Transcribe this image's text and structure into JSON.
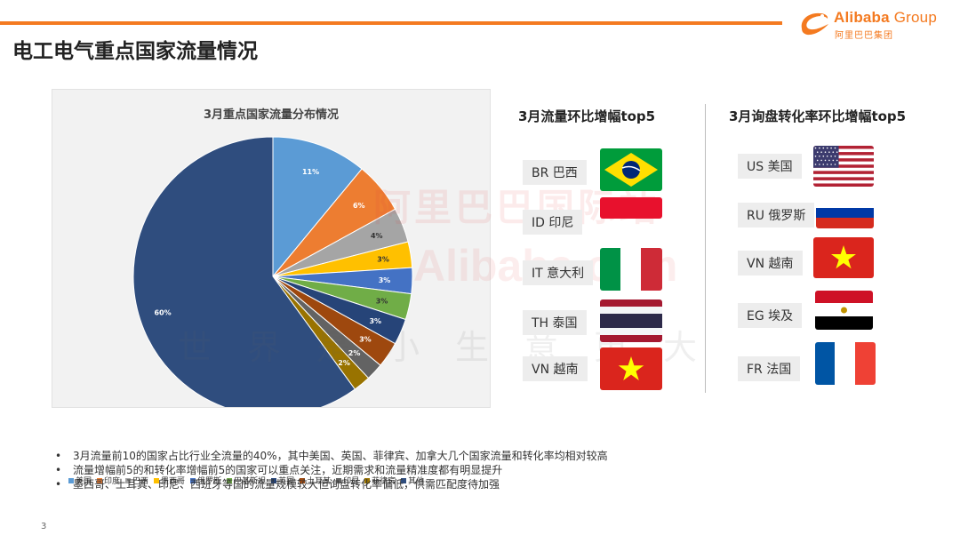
{
  "header": {
    "title": "电工电气重点国家流量情况",
    "brand_en": "Alibaba",
    "brand_group": " Group",
    "brand_cn": "阿里巴巴集团",
    "accent": "#f47a20"
  },
  "watermark": {
    "line1": "阿里巴巴国际站",
    "line2": "Alibaba.com",
    "line3": "世界是小生意更大"
  },
  "chart_data": {
    "type": "pie",
    "title": "3月重点国家流量分布情况",
    "categories": [
      "美国",
      "印度",
      "巴西",
      "墨西哥",
      "俄罗斯",
      "巴基斯坦",
      "英国",
      "土耳其",
      "印尼",
      "菲律宾",
      "其他"
    ],
    "values": [
      11,
      6,
      4,
      3,
      3,
      3,
      3,
      3,
      2,
      2,
      60
    ],
    "labels": [
      "11%",
      "6%",
      "4%",
      "3%",
      "3%",
      "3%",
      "3%",
      "3%",
      "2%",
      "2%",
      "60%"
    ],
    "colors": [
      "#5b9bd5",
      "#ed7d31",
      "#a5a5a5",
      "#ffc000",
      "#4472c4",
      "#70ad47",
      "#264478",
      "#9e480e",
      "#636363",
      "#997300",
      "#2f4d7e"
    ],
    "legend": "bottom"
  },
  "traffic_top5": {
    "title": "3月流量环比增幅top5",
    "items": [
      {
        "label": "BR 巴西",
        "flag": "brazil-flag-icon"
      },
      {
        "label": "ID 印尼",
        "flag": "indonesia-flag-icon"
      },
      {
        "label": "IT 意大利",
        "flag": "italy-flag-icon"
      },
      {
        "label": "TH 泰国",
        "flag": "thailand-flag-icon"
      },
      {
        "label": "VN 越南",
        "flag": "vietnam-flag-icon"
      }
    ]
  },
  "conversion_top5": {
    "title": "3月询盘转化率环比增幅top5",
    "items": [
      {
        "label": "US 美国",
        "flag": "usa-flag-icon"
      },
      {
        "label": "RU 俄罗斯",
        "flag": "russia-flag-icon"
      },
      {
        "label": "VN 越南",
        "flag": "vietnam-flag-icon"
      },
      {
        "label": "EG 埃及",
        "flag": "egypt-flag-icon"
      },
      {
        "label": "FR 法国",
        "flag": "france-flag-icon"
      }
    ]
  },
  "bullets": [
    "3月流量前10的国家占比行业全流量的40%，其中美国、英国、菲律宾、加拿大几个国家流量和转化率均相对较高",
    "流量增幅前5的和转化率增幅前5的国家可以重点关注，近期需求和流量精准度都有明显提升",
    "墨西哥、土耳其、印尼、西班牙等国的流量规模较大但询盘转化率偏低，供需匹配度待加强"
  ],
  "page_number": "3"
}
